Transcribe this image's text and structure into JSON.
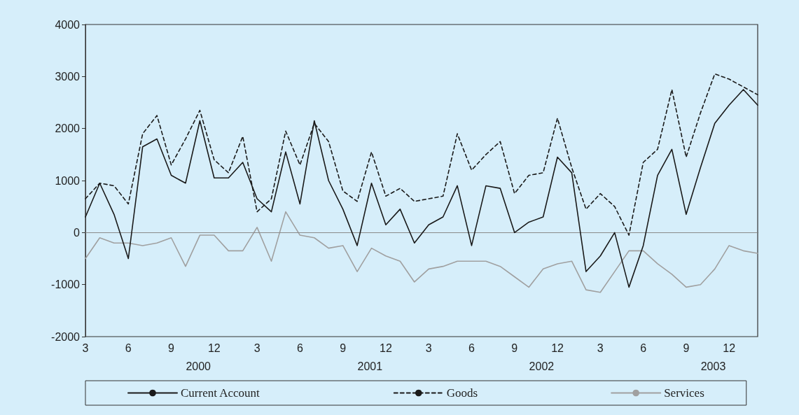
{
  "chart_data": {
    "type": "line",
    "x": [
      "2000-03",
      "2000-04",
      "2000-05",
      "2000-06",
      "2000-07",
      "2000-08",
      "2000-09",
      "2000-10",
      "2000-11",
      "2000-12",
      "2001-01",
      "2001-02",
      "2001-03",
      "2001-04",
      "2001-05",
      "2001-06",
      "2001-07",
      "2001-08",
      "2001-09",
      "2001-10",
      "2001-11",
      "2001-12",
      "2002-01",
      "2002-02",
      "2002-03",
      "2002-04",
      "2002-05",
      "2002-06",
      "2002-07",
      "2002-08",
      "2002-09",
      "2002-10",
      "2002-11",
      "2002-12",
      "2003-01",
      "2003-02",
      "2003-03",
      "2003-04",
      "2003-05",
      "2003-06",
      "2003-07",
      "2003-08",
      "2003-09",
      "2003-10",
      "2003-11",
      "2003-12",
      "2004-01",
      "2004-02"
    ],
    "series": [
      {
        "name": "Current Account",
        "color": "#1a1a1a",
        "line_style": "solid",
        "values": [
          300,
          950,
          350,
          -500,
          1650,
          1800,
          1100,
          950,
          2150,
          1050,
          1050,
          1350,
          650,
          400,
          1550,
          550,
          2150,
          1000,
          450,
          -250,
          950,
          150,
          450,
          -200,
          150,
          300,
          900,
          -250,
          900,
          850,
          0,
          200,
          300,
          1450,
          1150,
          -750,
          -450,
          0,
          -1050,
          -250,
          1100,
          1600,
          350,
          1250,
          2100,
          2450,
          2750,
          2450
        ]
      },
      {
        "name": "Goods",
        "color": "#1a1a1a",
        "line_style": "dashed",
        "values": [
          650,
          950,
          900,
          550,
          1900,
          2250,
          1300,
          1800,
          2350,
          1400,
          1150,
          1850,
          400,
          650,
          1950,
          1300,
          2100,
          1750,
          800,
          600,
          1550,
          700,
          850,
          600,
          650,
          700,
          1900,
          1200,
          1500,
          1750,
          750,
          1100,
          1150,
          2200,
          1250,
          450,
          750,
          500,
          -50,
          1350,
          1600,
          2750,
          1450,
          2300,
          3050,
          2950,
          2800,
          2650
        ]
      },
      {
        "name": "Services",
        "color": "#a0a0a0",
        "line_style": "solid",
        "values": [
          -500,
          -100,
          -200,
          -200,
          -250,
          -200,
          -100,
          -650,
          -50,
          -50,
          -350,
          -350,
          100,
          -550,
          400,
          -50,
          -100,
          -300,
          -250,
          -750,
          -300,
          -450,
          -550,
          -950,
          -700,
          -650,
          -550,
          -550,
          -550,
          -650,
          -850,
          -1050,
          -700,
          -600,
          -550,
          -1100,
          -1150,
          -750,
          -350,
          -350,
          -600,
          -800,
          -1050,
          -1000,
          -700,
          -250,
          -350,
          -400
        ]
      }
    ],
    "xlim": [
      "2000-03",
      "2004-02"
    ],
    "xticks": [
      {
        "value": "2000-03",
        "label": "3"
      },
      {
        "value": "2000-06",
        "label": "6"
      },
      {
        "value": "2000-09",
        "label": "9"
      },
      {
        "value": "2000-12",
        "label": "12"
      },
      {
        "value": "2001-03",
        "label": "3"
      },
      {
        "value": "2001-06",
        "label": "6"
      },
      {
        "value": "2001-09",
        "label": "9"
      },
      {
        "value": "2001-12",
        "label": "12"
      },
      {
        "value": "2002-03",
        "label": "3"
      },
      {
        "value": "2002-06",
        "label": "6"
      },
      {
        "value": "2002-09",
        "label": "9"
      },
      {
        "value": "2002-12",
        "label": "12"
      },
      {
        "value": "2003-03",
        "label": "3"
      },
      {
        "value": "2003-06",
        "label": "6"
      },
      {
        "value": "2003-09",
        "label": "9"
      },
      {
        "value": "2003-12",
        "label": "12"
      }
    ],
    "ylim": [
      -2000,
      4000
    ],
    "yticks": [
      -2000,
      -1000,
      0,
      1000,
      2000,
      3000,
      4000
    ],
    "annotations": [
      "2000",
      "2001",
      "2002",
      "2003"
    ],
    "ref_lines": [
      {
        "axis": "y",
        "value": 0,
        "color": "#8a8a8a"
      }
    ],
    "grid": false,
    "legend": "bottom",
    "marker": "none"
  }
}
